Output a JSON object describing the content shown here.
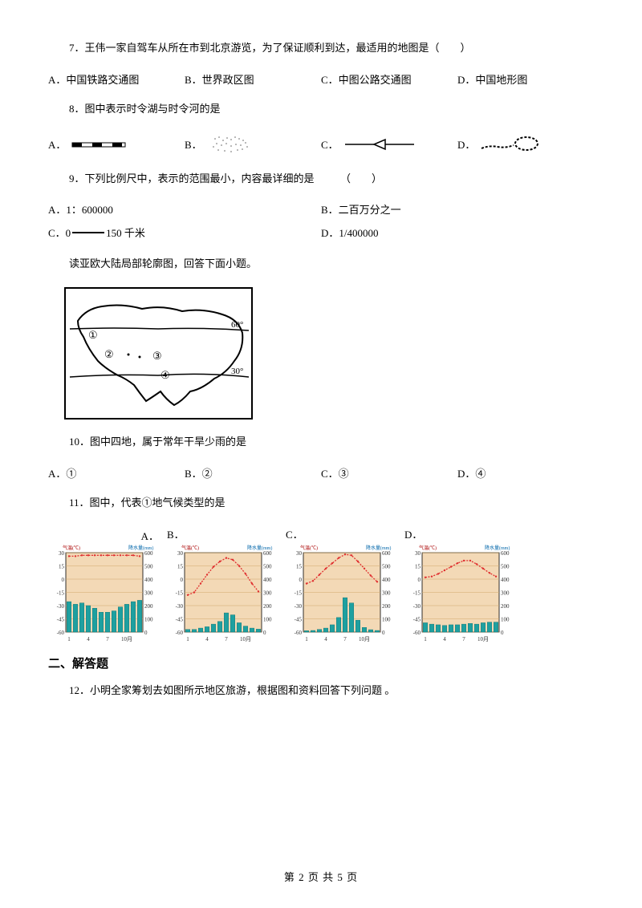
{
  "q7": {
    "text": "7．王伟一家自驾车从所在市到北京游览，为了保证顺利到达，最适用的地图是（　　）",
    "opts": {
      "A": "A．中国铁路交通图",
      "B": "B．世界政区图",
      "C": "C．中图公路交通图",
      "D": "D．中国地形图"
    }
  },
  "q8": {
    "text": "8．图中表示时令湖与时令河的是",
    "labels": {
      "A": "A．",
      "B": "B．",
      "C": "C．",
      "D": "D．"
    }
  },
  "q9": {
    "text": "9．下列比例尺中，表示的范围最小，内容最详细的是　　　（　　）",
    "opts": {
      "A": "A．1：600000",
      "B": "B．二百万分之一",
      "C_pre": "C．0",
      "C_post": "150 千米",
      "D": "D．1/400000"
    }
  },
  "passage1": "读亚欧大陆局部轮廓图，回答下面小题。",
  "map": {
    "lat60": "60°",
    "lat30": "30°",
    "m1": "①",
    "m2": "②",
    "m3": "③",
    "m4": "④"
  },
  "q10": {
    "text": "10．图中四地，属于常年干旱少雨的是",
    "opts": {
      "A": "A．①",
      "B": "B．②",
      "C": "C．③",
      "D": "D．④"
    }
  },
  "q11": {
    "text": "11．图中，代表①地气候类型的是",
    "labels": {
      "A": "A．",
      "B": "B．",
      "C": "C．",
      "D": "D．"
    },
    "chart": {
      "bg": "#f3d9b6",
      "grid": "#d0a76a",
      "bar_color": "#1ea0a0",
      "line_color": "#e03030",
      "temp_ticks": [
        "30",
        "15",
        "0",
        "-15",
        "-30",
        "-45",
        "-60"
      ],
      "precip_ticks": [
        "600",
        "500",
        "400",
        "300",
        "200",
        "100",
        "0"
      ],
      "x_ticks": [
        "1",
        "4",
        "7",
        "10月"
      ],
      "titleL": "气温(℃)",
      "titleR": "降水量(mm)",
      "A": {
        "temp": [
          26,
          26,
          27,
          27,
          27,
          27,
          27,
          27,
          27,
          27,
          27,
          26
        ],
        "precip": [
          230,
          210,
          220,
          200,
          180,
          150,
          150,
          160,
          190,
          210,
          230,
          240
        ]
      },
      "B": {
        "temp": [
          -18,
          -15,
          -5,
          5,
          14,
          20,
          24,
          22,
          15,
          6,
          -5,
          -14
        ],
        "precip": [
          20,
          20,
          30,
          40,
          60,
          80,
          145,
          130,
          70,
          45,
          30,
          22
        ]
      },
      "C": {
        "temp": [
          -5,
          -2,
          5,
          12,
          18,
          24,
          28,
          27,
          20,
          12,
          4,
          -3
        ],
        "precip": [
          10,
          12,
          20,
          30,
          55,
          110,
          260,
          220,
          90,
          35,
          18,
          12
        ]
      },
      "D": {
        "temp": [
          2,
          3,
          6,
          10,
          14,
          18,
          21,
          21,
          17,
          12,
          7,
          3
        ],
        "precip": [
          70,
          60,
          55,
          50,
          55,
          55,
          60,
          65,
          60,
          70,
          75,
          75
        ]
      }
    }
  },
  "section2": "二、解答题",
  "q12": "12．小明全家筹划去如图所示地区旅游，根据图和资料回答下列问题 。",
  "footer": "第 2 页 共 5 页"
}
